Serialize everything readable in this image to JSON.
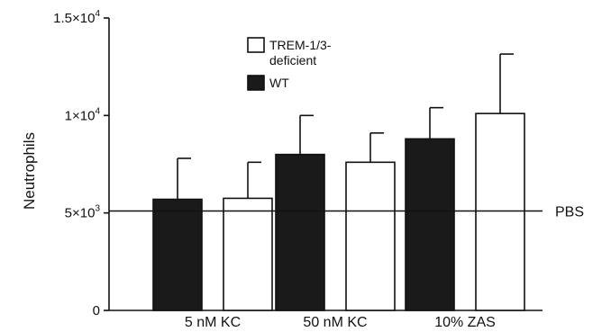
{
  "chart_data": {
    "type": "bar",
    "title": "",
    "xlabel": "",
    "ylabel": "Neutrophils",
    "ylim": [
      0,
      15000
    ],
    "y_ticks": [
      {
        "value": 0,
        "label": "0",
        "mant": "0",
        "exp": ""
      },
      {
        "value": 5000,
        "label": "5×10³",
        "mant": "5×10",
        "exp": "3"
      },
      {
        "value": 10000,
        "label": "1×10⁴",
        "mant": "1×10",
        "exp": "4"
      },
      {
        "value": 15000,
        "label": "1.5×10⁴",
        "mant": "1.5×10",
        "exp": "4"
      }
    ],
    "categories": [
      "5 nM KC",
      "50 nM KC",
      "10% ZAS"
    ],
    "series": [
      {
        "name": "WT",
        "fill": "#1a1a1a",
        "values": [
          5700,
          8000,
          8800
        ],
        "errors": [
          2100,
          2000,
          1600
        ]
      },
      {
        "name": "TREM-1/3-deficient",
        "fill": "#ffffff",
        "values": [
          5750,
          7600,
          10100
        ],
        "errors": [
          1850,
          1500,
          3050
        ]
      }
    ],
    "reference_line": {
      "label": "PBS",
      "value": 5100
    },
    "legend": {
      "placement": "top-center",
      "entries": [
        {
          "series": "TREM-1/3-deficient",
          "lines": [
            "TREM-1/3-",
            "deficient"
          ],
          "fill": "#ffffff"
        },
        {
          "series": "WT",
          "lines": [
            "WT"
          ],
          "fill": "#1a1a1a"
        }
      ]
    },
    "grid": false
  }
}
